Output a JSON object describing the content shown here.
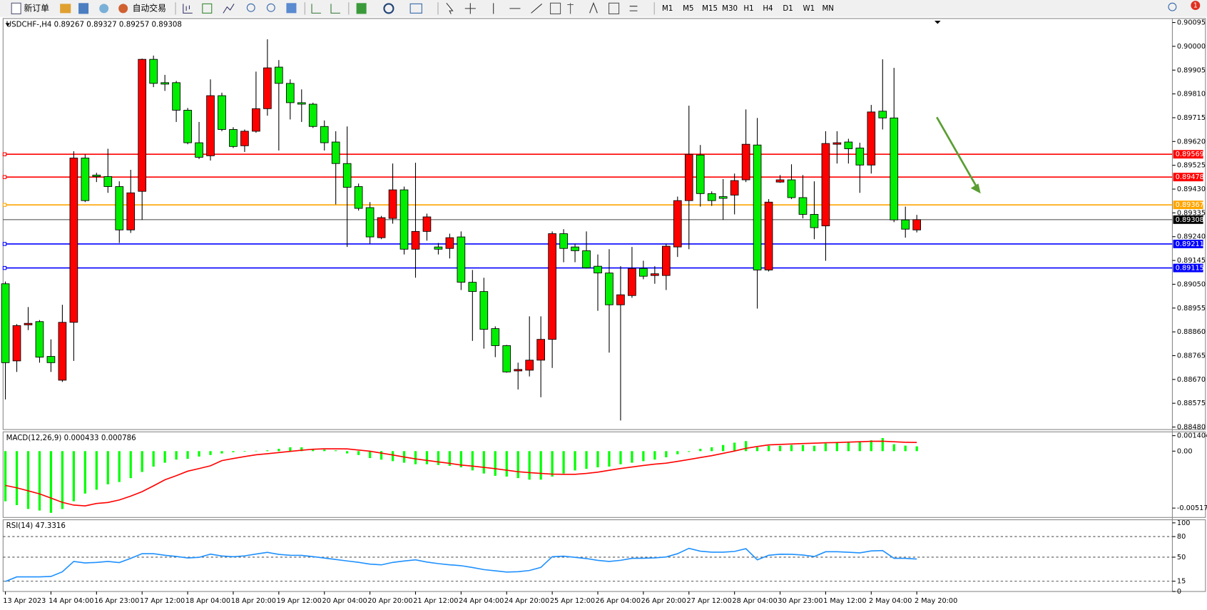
{
  "toolbar": {
    "new_order": "新订单",
    "auto_trading": "自动交易",
    "timeframes": [
      "M1",
      "M5",
      "M15",
      "M30",
      "H1",
      "H4",
      "D1",
      "W1",
      "MN"
    ],
    "badge": "1"
  },
  "chart_data": [
    {
      "type": "candlestick",
      "symbol": "USDCHF-,H4",
      "up_color": "#ff0000",
      "down_color": "#00ee00",
      "categories": [
        "13 Apr 2023",
        null,
        null,
        null,
        "14 Apr 04:00",
        null,
        null,
        null,
        "16 Apr 23:00",
        null,
        null,
        null,
        "17 Apr 12:00",
        null,
        null,
        null,
        "18 Apr 04:00",
        null,
        null,
        null,
        "18 Apr 20:00",
        null,
        null,
        null,
        "19 Apr 12:00",
        null,
        null,
        null,
        "20 Apr 04:00",
        null,
        null,
        null,
        "20 Apr 20:00",
        null,
        null,
        null,
        "21 Apr 12:00",
        null,
        null,
        null,
        "24 Apr 04:00",
        null,
        null,
        null,
        "24 Apr 20:00",
        null,
        null,
        null,
        "25 Apr 12:00",
        null,
        null,
        null,
        "26 Apr 04:00",
        null,
        null,
        null,
        "26 Apr 20:00",
        null,
        null,
        null,
        "27 Apr 12:00",
        null,
        null,
        null,
        "28 Apr 04:00",
        null,
        null,
        null,
        "30 Apr 23:00",
        null,
        null,
        null,
        "1 May 12:00",
        null,
        null,
        null,
        "2 May 04:00",
        null,
        null,
        null,
        "2 May 20:00"
      ],
      "candles": [
        [
          0.89052,
          0.89061,
          0.8859,
          0.88737
        ],
        [
          0.88744,
          0.88891,
          0.887,
          0.88885
        ],
        [
          0.88888,
          0.88959,
          0.88867,
          0.88894
        ],
        [
          0.88901,
          0.88907,
          0.88737,
          0.88759
        ],
        [
          0.88762,
          0.8883,
          0.887,
          0.88737
        ],
        [
          0.88667,
          0.88968,
          0.8866,
          0.88898
        ],
        [
          0.88898,
          0.89581,
          0.88744,
          0.89554
        ],
        [
          0.89554,
          0.89569,
          0.89378,
          0.89384
        ],
        [
          0.89486,
          0.89495,
          0.89458,
          0.8948
        ],
        [
          0.8948,
          0.89591,
          0.89415,
          0.8944
        ],
        [
          0.8944,
          0.89461,
          0.89215,
          0.89267
        ],
        [
          0.89267,
          0.89507,
          0.89255,
          0.89415
        ],
        [
          0.89421,
          0.89951,
          0.89307,
          0.89948
        ],
        [
          0.89948,
          0.89963,
          0.89837,
          0.89852
        ],
        [
          0.89855,
          0.89886,
          0.89822,
          0.89849
        ],
        [
          0.89855,
          0.89862,
          0.89698,
          0.89745
        ],
        [
          0.89745,
          0.89754,
          0.89609,
          0.89615
        ],
        [
          0.89615,
          0.89698,
          0.8955,
          0.89557
        ],
        [
          0.89563,
          0.89868,
          0.89544,
          0.89803
        ],
        [
          0.89803,
          0.89815,
          0.89661,
          0.89668
        ],
        [
          0.89668,
          0.89677,
          0.89594,
          0.896
        ],
        [
          0.89603,
          0.89668,
          0.89578,
          0.89661
        ],
        [
          0.89661,
          0.89899,
          0.89655,
          0.89751
        ],
        [
          0.89751,
          0.90028,
          0.89723,
          0.89914
        ],
        [
          0.89917,
          0.89945,
          0.89584,
          0.89852
        ],
        [
          0.89852,
          0.89868,
          0.89708,
          0.89775
        ],
        [
          0.89775,
          0.89828,
          0.89698,
          0.89769
        ],
        [
          0.89769,
          0.89775,
          0.89674,
          0.8968
        ],
        [
          0.8968,
          0.89704,
          0.89584,
          0.89615
        ],
        [
          0.89618,
          0.89661,
          0.89369,
          0.89532
        ],
        [
          0.89532,
          0.8968,
          0.89199,
          0.89437
        ],
        [
          0.8944,
          0.89452,
          0.89344,
          0.89353
        ],
        [
          0.89356,
          0.89378,
          0.89212,
          0.89239
        ],
        [
          0.89236,
          0.89323,
          0.8923,
          0.89316
        ],
        [
          0.89313,
          0.89532,
          0.89292,
          0.89427
        ],
        [
          0.89427,
          0.8944,
          0.89169,
          0.8919
        ],
        [
          0.8919,
          0.89535,
          0.89076,
          0.89261
        ],
        [
          0.89261,
          0.89332,
          0.89224,
          0.89319
        ],
        [
          0.89199,
          0.89215,
          0.89169,
          0.8919
        ],
        [
          0.89193,
          0.89252,
          0.89153,
          0.89236
        ],
        [
          0.89239,
          0.89261,
          0.89027,
          0.89058
        ],
        [
          0.89058,
          0.89107,
          0.88824,
          0.89021
        ],
        [
          0.89021,
          0.89076,
          0.88793,
          0.8887
        ],
        [
          0.88873,
          0.88882,
          0.88759,
          0.88805
        ],
        [
          0.88805,
          0.88808,
          0.88697,
          0.887
        ],
        [
          0.88704,
          0.88737,
          0.8863,
          0.8871
        ],
        [
          0.88707,
          0.88922,
          0.88682,
          0.88747
        ],
        [
          0.88747,
          0.88922,
          0.88599,
          0.8883
        ],
        [
          0.8883,
          0.89261,
          0.88716,
          0.89252
        ],
        [
          0.89252,
          0.8927,
          0.89138,
          0.89193
        ],
        [
          0.89199,
          0.89212,
          0.89138,
          0.89184
        ],
        [
          0.89184,
          0.89261,
          0.89113,
          0.89116
        ],
        [
          0.89122,
          0.89169,
          0.88944,
          0.89095
        ],
        [
          0.89095,
          0.8919,
          0.88777,
          0.88968
        ],
        [
          0.88968,
          0.89122,
          0.88506,
          0.89008
        ],
        [
          0.89005,
          0.89199,
          0.88996,
          0.89113
        ],
        [
          0.89113,
          0.89144,
          0.8907,
          0.89082
        ],
        [
          0.89085,
          0.89122,
          0.89052,
          0.89092
        ],
        [
          0.89085,
          0.89212,
          0.89027,
          0.89202
        ],
        [
          0.89199,
          0.894,
          0.89159,
          0.89384
        ],
        [
          0.89384,
          0.89763,
          0.8919,
          0.89569
        ],
        [
          0.89566,
          0.89606,
          0.8936,
          0.89412
        ],
        [
          0.89412,
          0.89421,
          0.89363,
          0.89384
        ],
        [
          0.894,
          0.8947,
          0.89307,
          0.89393
        ],
        [
          0.89406,
          0.89492,
          0.89329,
          0.89464
        ],
        [
          0.89467,
          0.89748,
          0.89458,
          0.89609
        ],
        [
          0.89606,
          0.89714,
          0.88953,
          0.89107
        ],
        [
          0.89107,
          0.8939,
          0.89101,
          0.89378
        ],
        [
          0.89458,
          0.89486,
          0.89455,
          0.89467
        ],
        [
          0.89467,
          0.89529,
          0.8939,
          0.89396
        ],
        [
          0.89396,
          0.89486,
          0.89313,
          0.89329
        ],
        [
          0.89329,
          0.89461,
          0.8923,
          0.89276
        ],
        [
          0.89283,
          0.89661,
          0.89144,
          0.89612
        ],
        [
          0.89609,
          0.89661,
          0.89532,
          0.89615
        ],
        [
          0.89618,
          0.89631,
          0.89532,
          0.89591
        ],
        [
          0.89594,
          0.89615,
          0.89415,
          0.89526
        ],
        [
          0.89526,
          0.89766,
          0.89492,
          0.89738
        ],
        [
          0.89741,
          0.89948,
          0.89668,
          0.89714
        ],
        [
          0.89714,
          0.89914,
          0.89298,
          0.89307
        ],
        [
          0.89307,
          0.8936,
          0.89236,
          0.8927
        ],
        [
          0.89267,
          0.89327,
          0.89257,
          0.89308
        ]
      ],
      "ylim": [
        0.8847,
        0.90111
      ],
      "yticks": [
        0.90095,
        {
          "value": 0.9,
          "label": "0.90000"
        },
        0.89905,
        {
          "value": 0.8981,
          "label": "0.89810"
        },
        0.89715,
        {
          "value": 0.8962,
          "label": "0.89620"
        },
        0.89525,
        {
          "value": 0.8943,
          "label": "0.89430"
        },
        0.89335,
        {
          "value": 0.8924,
          "label": "0.89240"
        },
        0.89145,
        {
          "value": 0.8905,
          "label": "0.89050"
        },
        0.88955,
        {
          "value": 0.8886,
          "label": "0.88860"
        },
        0.88765,
        {
          "value": 0.8867,
          "label": "0.88670"
        },
        0.88575,
        {
          "value": 0.8848,
          "label": "0.88480"
        }
      ],
      "levels": [
        {
          "value": 0.89569,
          "color": "#ff0000"
        },
        {
          "value": 0.89478,
          "color": "#ff0000"
        },
        {
          "value": 0.89367,
          "color": "#ffa500"
        },
        {
          "value": 0.89211,
          "color": "#0000ff"
        },
        {
          "value": 0.89115,
          "color": "#0000ff"
        }
      ]
    },
    {
      "type": "macd",
      "label": "MACD(12,26,9)",
      "hist_color": "#00ff00",
      "signal_color": "#ff0000",
      "histogram": [
        -0.00455,
        -0.0049,
        -0.00525,
        -0.00539,
        -0.0056,
        -0.00525,
        -0.00455,
        -0.00385,
        -0.0035,
        -0.00301,
        -0.0028,
        -0.00245,
        -0.00189,
        -0.0014,
        -0.00105,
        -0.00077,
        -0.0007,
        -0.00049,
        -0.00035,
        -0.00021,
        -0.0001,
        -5e-05,
        3e-05,
        7e-05,
        0.00021,
        0.00035,
        0.00035,
        0.00021,
        0.00014,
        7e-05,
        -0.00021,
        -0.00035,
        -0.00063,
        -0.00077,
        -0.00091,
        -0.00105,
        -0.00119,
        -0.00119,
        -0.00126,
        -0.00133,
        -0.00147,
        -0.00175,
        -0.00203,
        -0.00224,
        -0.00231,
        -0.00245,
        -0.00259,
        -0.00259,
        -0.00231,
        -0.00203,
        -0.00175,
        -0.00161,
        -0.00147,
        -0.0014,
        -0.00119,
        -0.00105,
        -0.00091,
        -0.00077,
        -0.00056,
        -0.00028,
        -7e-05,
        0.00021,
        0.00035,
        0.00056,
        0.00077,
        0.00091,
        0.00035,
        0.00049,
        0.00049,
        0.00056,
        0.00056,
        0.00049,
        0.0007,
        0.00084,
        0.00084,
        0.00084,
        0.00098,
        0.00119,
        0.00063,
        0.0005,
        0.000433
      ],
      "signal": [
        -0.00311,
        -0.00333,
        -0.0036,
        -0.00388,
        -0.00426,
        -0.00465,
        -0.0049,
        -0.00497,
        -0.00475,
        -0.00466,
        -0.00443,
        -0.00408,
        -0.00368,
        -0.00315,
        -0.0026,
        -0.00223,
        -0.00182,
        -0.00158,
        -0.00133,
        -0.00086,
        -0.00067,
        -0.00049,
        -0.00033,
        -0.00023,
        -0.00013,
        -2e-05,
        8e-05,
        0.00017,
        0.00021,
        0.00021,
        0.0002,
        0.0001,
        -1e-05,
        -0.00018,
        -0.00035,
        -0.00053,
        -0.0007,
        -0.00084,
        -0.00098,
        -0.00111,
        -0.00126,
        -0.00136,
        -0.00147,
        -0.00159,
        -0.00173,
        -0.00187,
        -0.00195,
        -0.00202,
        -0.00209,
        -0.0021,
        -0.0021,
        -0.00202,
        -0.00191,
        -0.00174,
        -0.00158,
        -0.00144,
        -0.0013,
        -0.00118,
        -0.00109,
        -0.00093,
        -0.00076,
        -0.00058,
        -0.00041,
        -0.0002,
        1e-05,
        0.00025,
        0.00042,
        0.00057,
        0.00061,
        0.00065,
        0.00069,
        0.00072,
        0.00076,
        0.00078,
        0.00082,
        0.00085,
        0.00089,
        0.0009,
        0.00085,
        0.0008,
        0.000786
      ],
      "ylim": [
        -0.00602,
        0.00175
      ],
      "yticks": [
        0.001404,
        {
          "value": 0,
          "label": "0.00"
        },
        -0.00517
      ]
    },
    {
      "type": "line",
      "label": "RSI(14)",
      "color": "#1e90ff",
      "values": [
        14.6,
        21.3,
        21.3,
        21.3,
        21.9,
        28.7,
        43.8,
        41.6,
        42.4,
        43.8,
        42.1,
        48.3,
        55.1,
        55.1,
        52.8,
        51.1,
        48.8,
        49.7,
        54.4,
        51.7,
        50.7,
        51.9,
        54.6,
        57.0,
        54.0,
        52.8,
        52.6,
        50.8,
        48.7,
        46.6,
        44.5,
        42.5,
        39.9,
        38.8,
        42.4,
        44.4,
        46.1,
        42.9,
        40.6,
        38.9,
        37.6,
        34.9,
        31.9,
        30.1,
        28.3,
        28.8,
        30.6,
        35.1,
        50.7,
        51.5,
        49.8,
        48.0,
        45.3,
        43.8,
        45.4,
        48.3,
        48.5,
        49.0,
        50.3,
        55.1,
        62.9,
        58.7,
        57.3,
        57.3,
        58.4,
        62.4,
        46.1,
        52.8,
        54.3,
        54.2,
        53.1,
        50.9,
        57.9,
        57.9,
        57.2,
        56.3,
        59.1,
        59.6,
        48.3,
        48.3,
        47.3316
      ],
      "ylim": [
        0,
        100
      ],
      "yticks": [
        100,
        80,
        50,
        15,
        0
      ]
    }
  ]
}
